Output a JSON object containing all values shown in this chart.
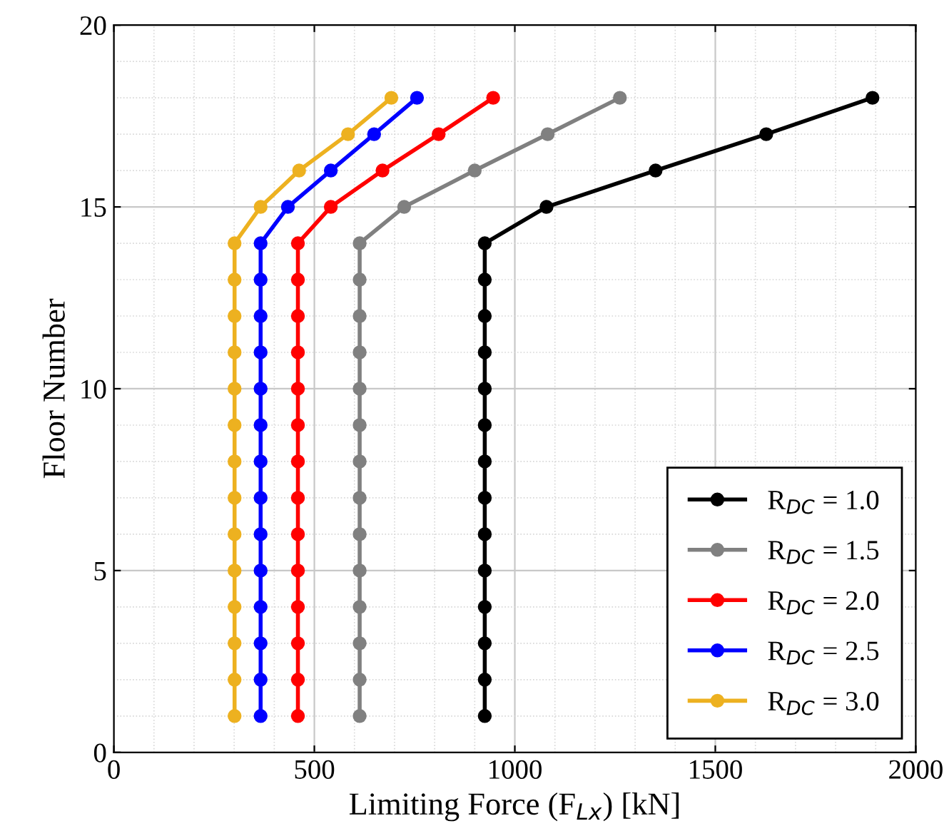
{
  "chart_data": {
    "type": "line",
    "xlabel": "Limiting Force (F$_{Lx}$) [kN]",
    "ylabel": "Floor Number",
    "xlim": [
      0,
      2000
    ],
    "xticks": [
      0,
      500,
      1000,
      1500,
      2000
    ],
    "ylim": [
      0,
      20
    ],
    "yticks": [
      0,
      5,
      10,
      15,
      20
    ],
    "grid": true,
    "legend": "bottom right",
    "marker": "circle",
    "line_style": "solid",
    "series": [
      {
        "name": "R$_{DC}$ = 1.0",
        "color": "#000000",
        "x": [
          925,
          925,
          925,
          925,
          925,
          925,
          925,
          925,
          925,
          925,
          925,
          925,
          925,
          925,
          1079,
          1351,
          1627,
          1892
        ],
        "values": [
          1,
          2,
          3,
          4,
          5,
          6,
          7,
          8,
          9,
          10,
          11,
          12,
          13,
          14,
          15,
          16,
          17,
          18
        ]
      },
      {
        "name": "R$_{DC}$ = 1.5",
        "color": "#808080",
        "x": [
          613,
          613,
          613,
          613,
          613,
          613,
          613,
          613,
          613,
          613,
          613,
          613,
          613,
          613,
          724,
          900,
          1082,
          1262
        ],
        "values": [
          1,
          2,
          3,
          4,
          5,
          6,
          7,
          8,
          9,
          10,
          11,
          12,
          13,
          14,
          15,
          16,
          17,
          18
        ]
      },
      {
        "name": "R$_{DC}$ = 2.0",
        "color": "#ff0000",
        "x": [
          459,
          459,
          459,
          459,
          459,
          459,
          459,
          459,
          459,
          459,
          459,
          459,
          459,
          459,
          541,
          670,
          810,
          946
        ],
        "values": [
          1,
          2,
          3,
          4,
          5,
          6,
          7,
          8,
          9,
          10,
          11,
          12,
          13,
          14,
          15,
          16,
          17,
          18
        ]
      },
      {
        "name": "R$_{DC}$ = 2.5",
        "color": "#0000ff",
        "x": [
          366,
          366,
          366,
          366,
          366,
          366,
          366,
          366,
          366,
          366,
          366,
          366,
          366,
          366,
          434,
          541,
          649,
          756
        ],
        "values": [
          1,
          2,
          3,
          4,
          5,
          6,
          7,
          8,
          9,
          10,
          11,
          12,
          13,
          14,
          15,
          16,
          17,
          18
        ]
      },
      {
        "name": "R$_{DC}$ = 3.0",
        "color": "#edb120",
        "x": [
          301,
          301,
          301,
          301,
          301,
          301,
          301,
          301,
          301,
          301,
          301,
          301,
          301,
          301,
          366,
          462,
          584,
          692
        ],
        "values": [
          1,
          2,
          3,
          4,
          5,
          6,
          7,
          8,
          9,
          10,
          11,
          12,
          13,
          14,
          15,
          16,
          17,
          18
        ]
      }
    ]
  }
}
